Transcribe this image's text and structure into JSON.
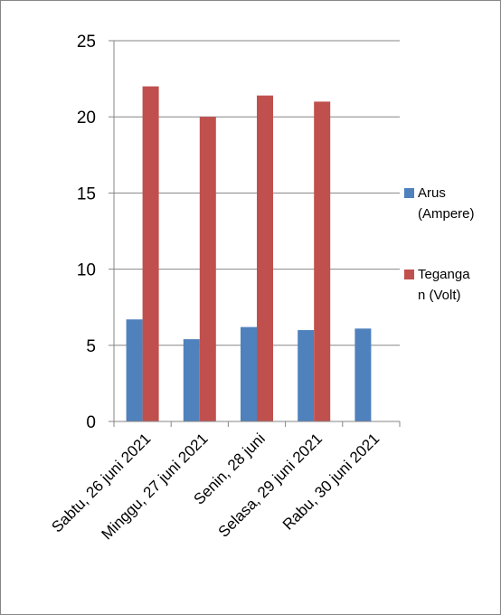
{
  "chart_data": {
    "type": "bar",
    "title": "",
    "xlabel": "",
    "ylabel": "",
    "categories": [
      "Sabtu, 26 juni 2021",
      "Minggu, 27 juni 2021",
      "Senin, 28 juni",
      "Selasa, 29 juni 2021",
      "Rabu, 30 juni 2021"
    ],
    "series": [
      {
        "name": "Arus (Ampere)",
        "legend_lines": [
          "Arus",
          "(Ampere)"
        ],
        "color": "#4f81bd",
        "values": [
          6.7,
          5.4,
          6.2,
          6.0,
          6.1
        ]
      },
      {
        "name": "Tegangan (Volt)",
        "legend_lines": [
          "Teganga",
          "n (Volt)"
        ],
        "color": "#c0504d",
        "values": [
          22,
          20,
          21.4,
          21,
          null
        ]
      }
    ],
    "ylim": [
      0,
      25
    ],
    "yticks": [
      0,
      5,
      10,
      15,
      20,
      25
    ],
    "grid": true,
    "legend_position": "right"
  },
  "colors": {
    "grid": "#868686",
    "axis": "#868686",
    "border": "#868686"
  }
}
